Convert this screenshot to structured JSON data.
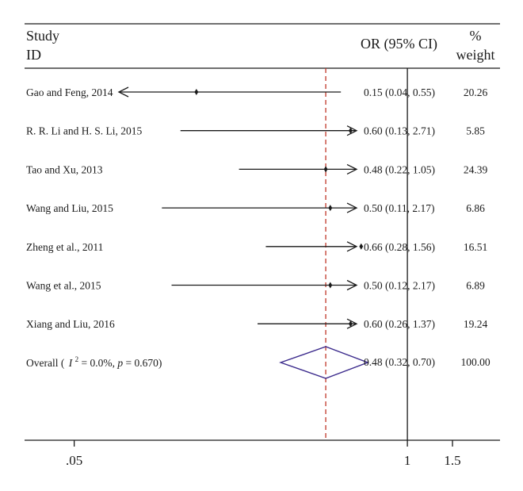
{
  "chart_data": {
    "type": "forest",
    "headers": {
      "study_line1": "Study",
      "study_line2": "ID",
      "or_ci": "OR (95% CI)",
      "weight_line1": "%",
      "weight_line2": "weight"
    },
    "x_scale": "log",
    "xlim": [
      0.032,
      2.3
    ],
    "x_ticks": [
      {
        "value": 0.05,
        "label": ".05"
      },
      {
        "value": 1,
        "label": "1"
      },
      {
        "value": 1.5,
        "label": "1.5"
      }
    ],
    "null_line": 1,
    "overall_line": 0.48,
    "studies": [
      {
        "label": "Gao and Feng, 2014",
        "or": 0.15,
        "lower": 0.04,
        "upper": 0.55,
        "or_ci_text": "0.15 (0.04, 0.55)",
        "weight": "20.26"
      },
      {
        "label": "R. R. Li and H. S. Li, 2015",
        "or": 0.6,
        "lower": 0.13,
        "upper": 2.71,
        "or_ci_text": "0.60 (0.13, 2.71)",
        "weight": "5.85"
      },
      {
        "label": "Tao and Xu, 2013",
        "or": 0.48,
        "lower": 0.22,
        "upper": 1.05,
        "or_ci_text": "0.48 (0.22, 1.05)",
        "weight": "24.39"
      },
      {
        "label": "Wang and Liu, 2015",
        "or": 0.5,
        "lower": 0.11,
        "upper": 2.17,
        "or_ci_text": "0.50 (0.11, 2.17)",
        "weight": "6.86"
      },
      {
        "label": "Zheng et al., 2011",
        "or": 0.66,
        "lower": 0.28,
        "upper": 1.56,
        "or_ci_text": "0.66 (0.28, 1.56)",
        "weight": "16.51"
      },
      {
        "label": "Wang et al., 2015",
        "or": 0.5,
        "lower": 0.12,
        "upper": 2.17,
        "or_ci_text": "0.50 (0.12, 2.17)",
        "weight": "6.89"
      },
      {
        "label": "Xiang and Liu, 2016",
        "or": 0.6,
        "lower": 0.26,
        "upper": 1.37,
        "or_ci_text": "0.60 (0.26, 1.37)",
        "weight": "19.24"
      }
    ],
    "overall": {
      "label_prefix": "Overall (",
      "i_symbol": "I",
      "i_exponent": "2",
      "i_value": " = 0.0%, ",
      "p_symbol": "p",
      "p_value": " = 0.670)",
      "or": 0.48,
      "lower": 0.32,
      "upper": 0.7,
      "or_ci_text": "0.48 (0.32, 0.70)",
      "weight": "100.00"
    },
    "colors": {
      "text": "#1a1a1a",
      "lines": "#1a1a1a",
      "overall_line": "#c0392b",
      "diamond": "#3b2a8c"
    }
  }
}
